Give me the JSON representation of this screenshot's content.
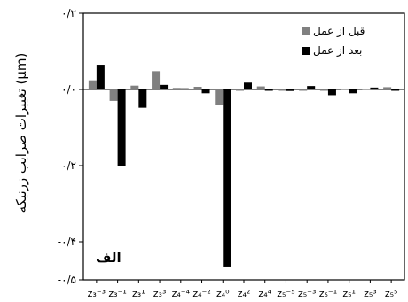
{
  "chart_data": {
    "type": "bar",
    "ylabel": "تغییرات ضرایب زرنیکه (μm)",
    "panel_label": "الف",
    "ylim": [
      -0.5,
      0.2
    ],
    "yticks": [
      0.2,
      0.0,
      -0.2,
      -0.4,
      -0.5
    ],
    "ytick_labels": [
      "۰/۲",
      "۰/۰",
      "-۰/۲",
      "-۰/۴",
      "-۰/۵"
    ],
    "categories": [
      "z₃⁻³",
      "z₃⁻¹",
      "z₃¹",
      "z₃³",
      "z₄⁻⁴",
      "z₄⁻²",
      "z₄⁰",
      "z₄²",
      "z₄⁴",
      "z₅⁻⁵",
      "z₅⁻³",
      "z₅⁻¹",
      "z₅¹",
      "z₅³",
      "z₅⁵"
    ],
    "series": [
      {
        "name": "قبل از عمل",
        "color": "#808080",
        "values": [
          0.024,
          -0.03,
          0.01,
          0.048,
          0.004,
          0.007,
          -0.04,
          0.0,
          0.008,
          -0.002,
          0.0,
          -0.001,
          0.002,
          0.002,
          0.006
        ]
      },
      {
        "name": "بعد از عمل",
        "color": "#000000",
        "values": [
          0.065,
          -0.2,
          -0.048,
          0.012,
          0.003,
          -0.01,
          -0.465,
          0.018,
          -0.003,
          -0.004,
          0.009,
          -0.015,
          -0.01,
          0.005,
          -0.002
        ]
      }
    ],
    "legend_position": "top-right",
    "grid": false
  }
}
